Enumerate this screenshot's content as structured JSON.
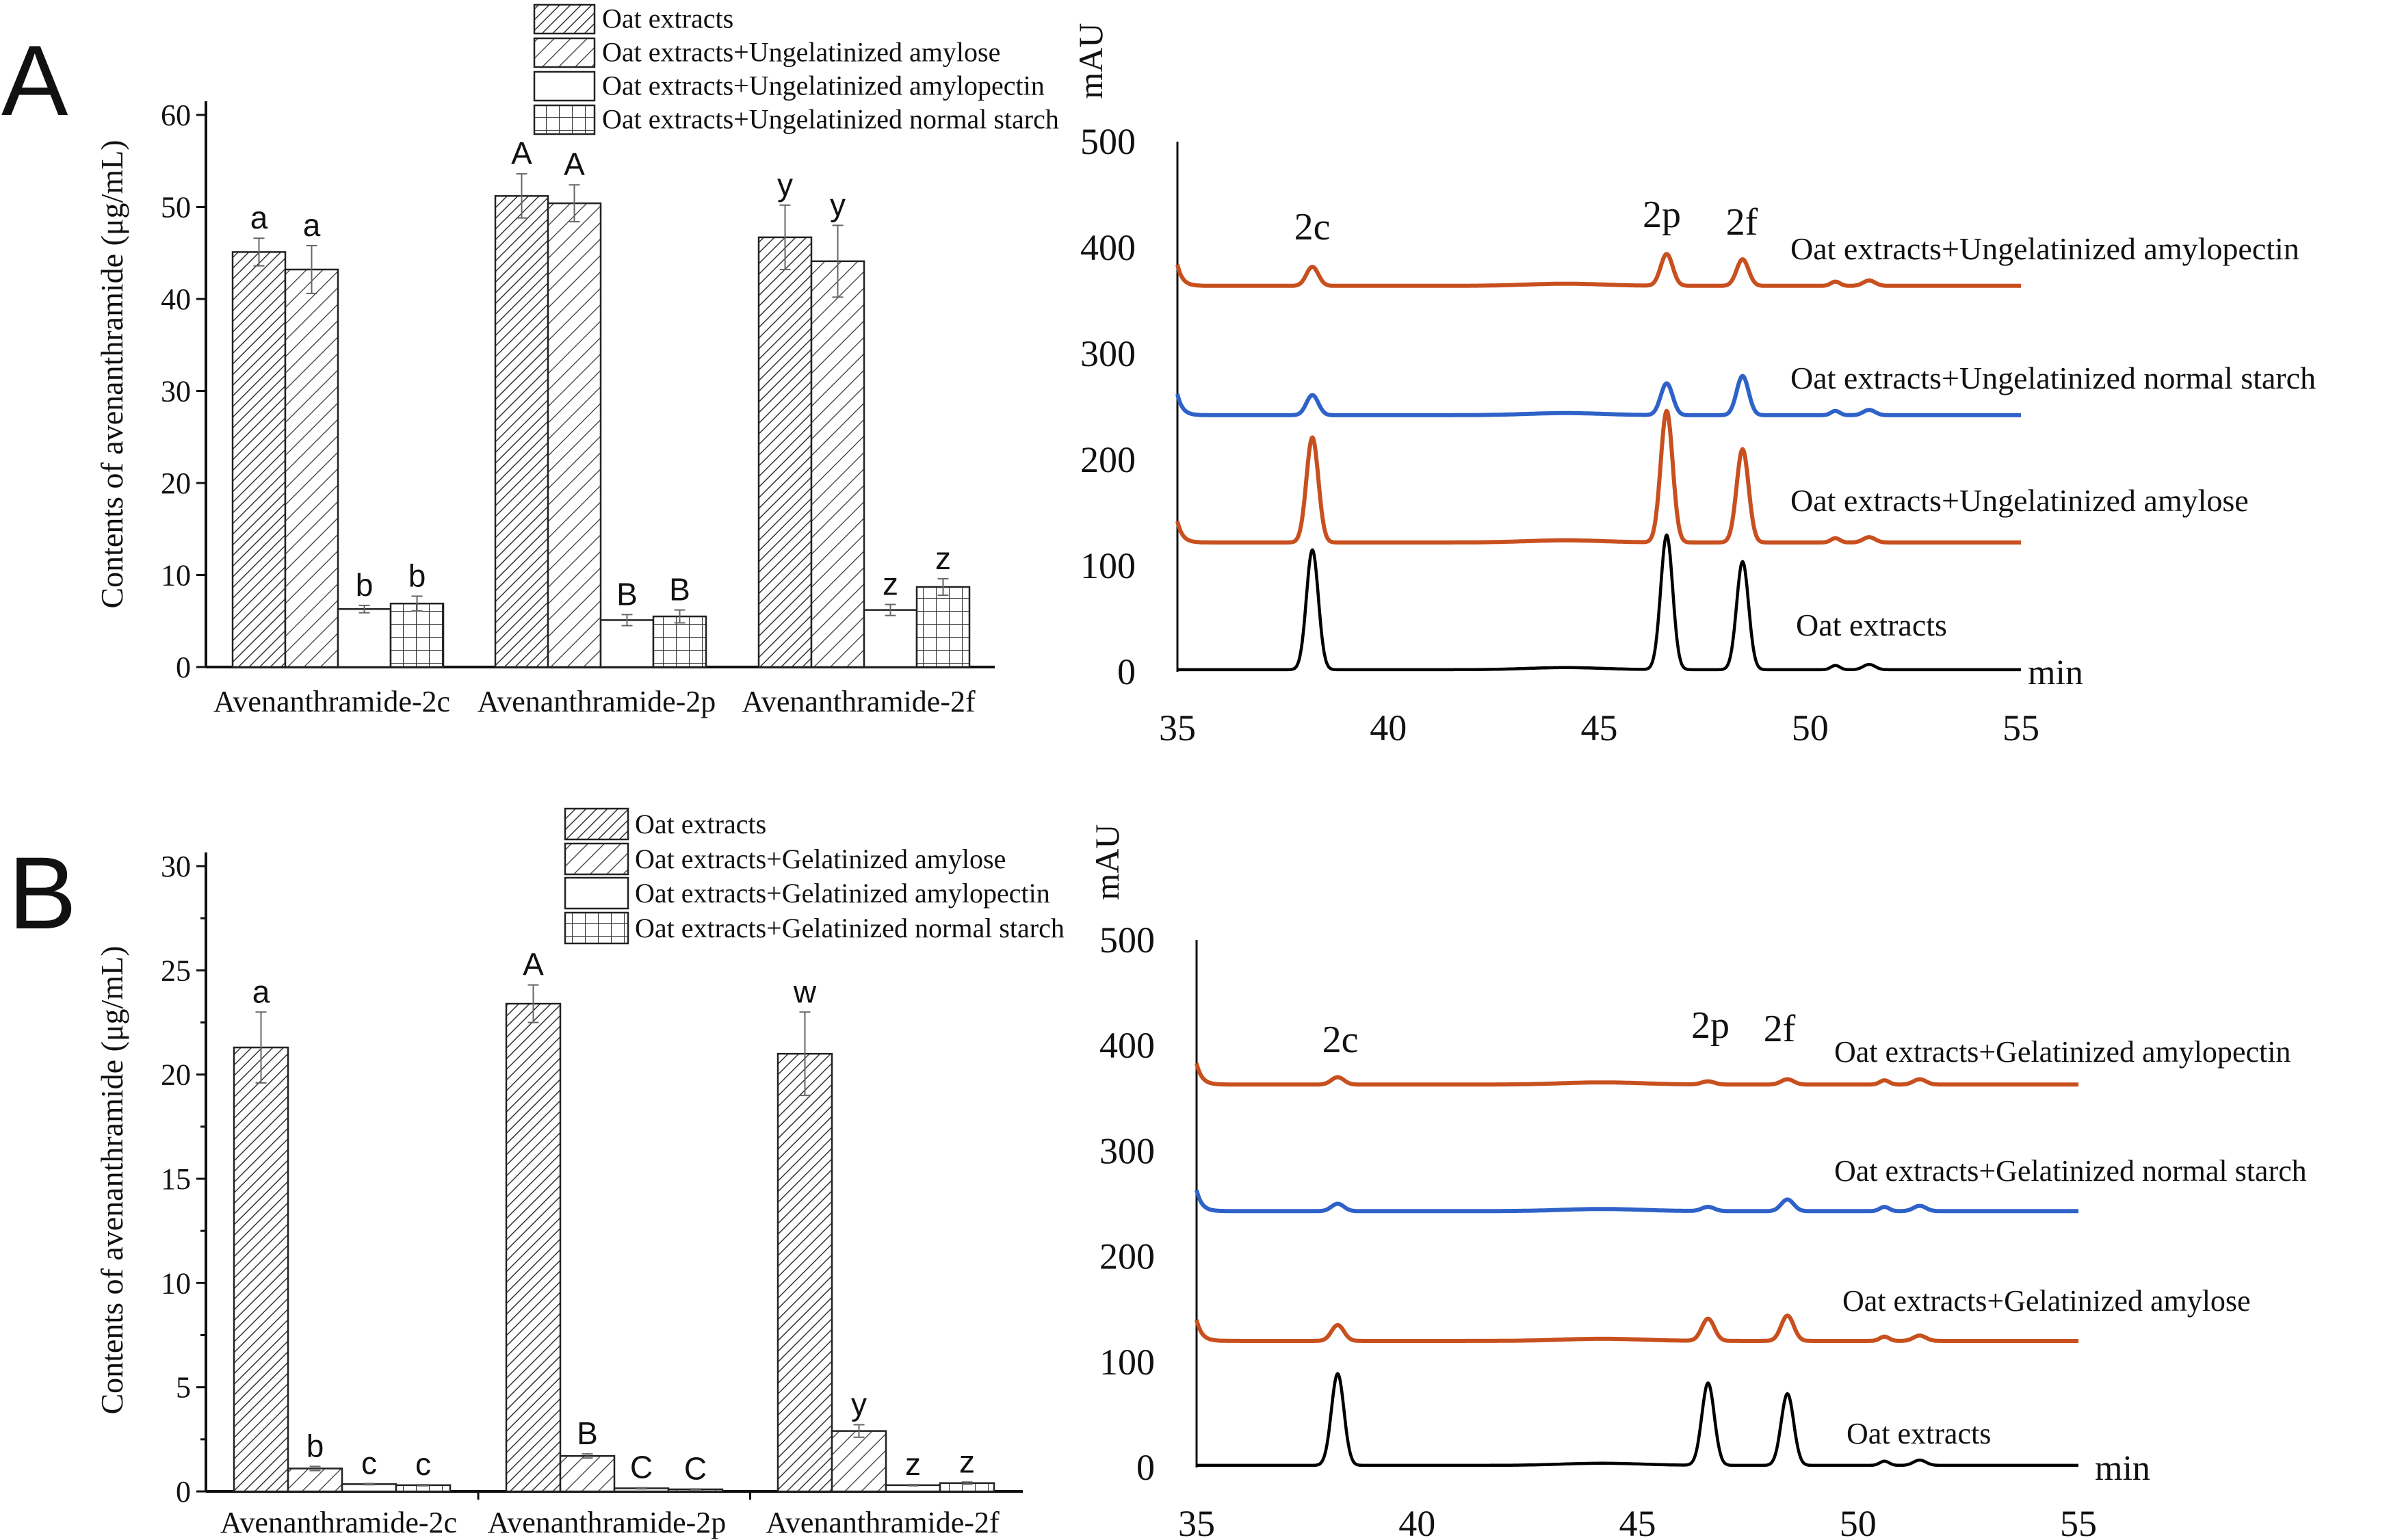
{
  "panel_labels": [
    "A",
    "B"
  ],
  "chart_data": [
    {
      "type": "bar",
      "panel": "A",
      "ylabel": "Contents of avenanthramide (μg/mL)",
      "ylim": [
        0,
        60
      ],
      "yticks": [
        0,
        10,
        20,
        30,
        40,
        50,
        60
      ],
      "categories": [
        "Avenanthramide-2c",
        "Avenanthramide-2p",
        "Avenanthramide-2f"
      ],
      "legend_placement": "top-right",
      "series": [
        {
          "name": "Oat extracts",
          "pattern": "dense-hatch",
          "values": [
            45.1,
            51.2,
            46.7
          ],
          "errors": [
            1.5,
            2.4,
            3.5
          ],
          "letters": [
            "a",
            "A",
            "y"
          ]
        },
        {
          "name": "Oat extracts+Ungelatinized amylose",
          "pattern": "hatch",
          "values": [
            43.2,
            50.4,
            44.1
          ],
          "errors": [
            2.6,
            2.0,
            3.9
          ],
          "letters": [
            "a",
            "A",
            "y"
          ]
        },
        {
          "name": "Oat extracts+Ungelatinized amylopectin",
          "pattern": "blank",
          "values": [
            6.3,
            5.1,
            6.2
          ],
          "errors": [
            0.4,
            0.6,
            0.6
          ],
          "letters": [
            "b",
            "B",
            "z"
          ]
        },
        {
          "name": "Oat extracts+Ungelatinized normal starch",
          "pattern": "grid",
          "values": [
            6.9,
            5.5,
            8.7
          ],
          "errors": [
            0.8,
            0.7,
            0.9
          ],
          "letters": [
            "b",
            "B",
            "z"
          ]
        }
      ]
    },
    {
      "type": "line",
      "panel": "A",
      "ylabel": "mAU",
      "xlabel": "min",
      "xlim": [
        35,
        55
      ],
      "ylim": [
        0,
        500
      ],
      "xticks": [
        35,
        40,
        45,
        50,
        55
      ],
      "yticks": [
        0,
        100,
        200,
        300,
        400,
        500
      ],
      "peak_labels": [
        "2c",
        "2p",
        "2f"
      ],
      "peak_times": [
        38.2,
        46.6,
        48.4
      ],
      "series": [
        {
          "name": "Oat extracts+Ungelatinized  amylopectin",
          "color": "#c8501e",
          "baseline": 364,
          "peaks": [
            382,
            394,
            389
          ]
        },
        {
          "name": "Oat extracts+Ungelatinized  normal starch",
          "color": "#2f62c8",
          "baseline": 242,
          "peaks": [
            261,
            272,
            279
          ]
        },
        {
          "name": "Oat extracts+Ungelatinized  amylose",
          "color": "#c8501e",
          "baseline": 122,
          "peaks": [
            221,
            246,
            210
          ]
        },
        {
          "name": "Oat extracts",
          "color": "#000000",
          "baseline": 2,
          "peaks": [
            115,
            129,
            104
          ]
        }
      ]
    },
    {
      "type": "bar",
      "panel": "B",
      "ylabel": "Contents of avenanthramide (μg/mL)",
      "ylim": [
        0,
        30
      ],
      "yticks": [
        0,
        5,
        10,
        15,
        20,
        25,
        30
      ],
      "categories": [
        "Avenanthramide-2c",
        "Avenanthramide-2p",
        "Avenanthramide-2f"
      ],
      "legend_placement": "top-right",
      "series": [
        {
          "name": "Oat extracts",
          "pattern": "dense-hatch",
          "values": [
            21.3,
            23.4,
            21.0
          ],
          "errors": [
            1.7,
            0.9,
            2.0
          ],
          "letters": [
            "a",
            "A",
            "w"
          ]
        },
        {
          "name": "Oat extracts+Gelatinized amylose",
          "pattern": "hatch",
          "values": [
            1.1,
            1.7,
            2.9
          ],
          "errors": [
            0.1,
            0.1,
            0.3
          ],
          "letters": [
            "b",
            "B",
            "y"
          ]
        },
        {
          "name": "Oat extracts+Gelatinized amylopectin",
          "pattern": "blank",
          "values": [
            0.35,
            0.15,
            0.3
          ],
          "errors": [
            0.03,
            0.03,
            0.03
          ],
          "letters": [
            "c",
            "C",
            "z"
          ]
        },
        {
          "name": "Oat extracts+Gelatinized normal starch",
          "pattern": "grid",
          "values": [
            0.3,
            0.1,
            0.4
          ],
          "errors": [
            0.03,
            0.02,
            0.05
          ],
          "letters": [
            "c",
            "C",
            "z"
          ]
        }
      ]
    },
    {
      "type": "line",
      "panel": "B",
      "ylabel": "mAU",
      "xlabel": "min",
      "xlim": [
        35,
        55
      ],
      "ylim": [
        0,
        500
      ],
      "xticks": [
        35,
        40,
        45,
        50,
        55
      ],
      "yticks": [
        0,
        100,
        200,
        300,
        400,
        500
      ],
      "peak_labels": [
        "2c",
        "2p",
        "2f"
      ],
      "peak_times": [
        38.2,
        46.6,
        48.4
      ],
      "series": [
        {
          "name": "Oat extracts+Gelatinized  amylopectin",
          "color": "#c8501e",
          "baseline": 363,
          "peaks": [
            370,
            366,
            368
          ]
        },
        {
          "name": "Oat extracts+Gelatinized  normal starch",
          "color": "#2f62c8",
          "baseline": 243,
          "peaks": [
            250,
            247,
            254
          ]
        },
        {
          "name": "Oat extracts+Gelatinized  amylose",
          "color": "#c8501e",
          "baseline": 120,
          "peaks": [
            135,
            141,
            144
          ]
        },
        {
          "name": "Oat extracts",
          "color": "#000000",
          "baseline": 2,
          "peaks": [
            89,
            80,
            70
          ]
        }
      ]
    }
  ]
}
